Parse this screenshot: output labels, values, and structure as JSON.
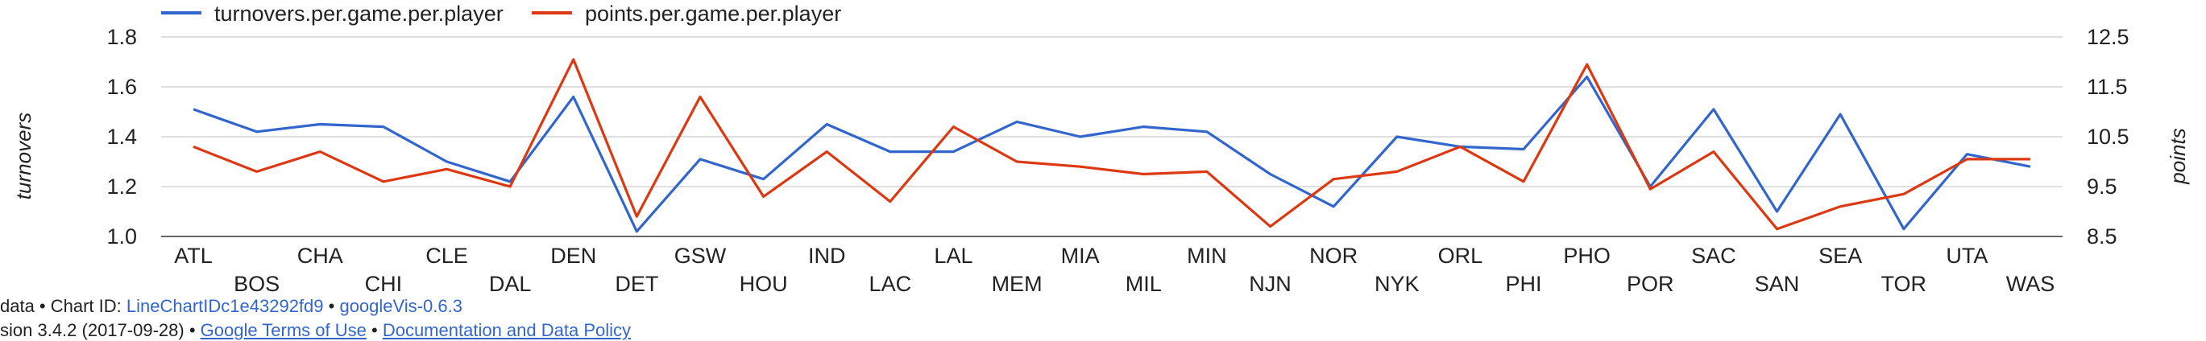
{
  "chart_data": {
    "type": "line",
    "categories": [
      "ATL",
      "BOS",
      "CHA",
      "CHI",
      "CLE",
      "DAL",
      "DEN",
      "DET",
      "GSW",
      "HOU",
      "IND",
      "LAC",
      "LAL",
      "MEM",
      "MIA",
      "MIL",
      "MIN",
      "NJN",
      "NOR",
      "NYK",
      "ORL",
      "PHI",
      "PHO",
      "POR",
      "SAC",
      "SAN",
      "SEA",
      "TOR",
      "UTA",
      "WAS"
    ],
    "series": [
      {
        "name": "turnovers.per.game.per.player",
        "axis": "left",
        "color": "#3366cc",
        "values": [
          1.51,
          1.42,
          1.45,
          1.44,
          1.3,
          1.22,
          1.56,
          1.02,
          1.31,
          1.23,
          1.45,
          1.34,
          1.34,
          1.46,
          1.4,
          1.44,
          1.42,
          1.25,
          1.12,
          1.4,
          1.36,
          1.35,
          1.64,
          1.2,
          1.51,
          1.1,
          1.49,
          1.03,
          1.33,
          1.28
        ]
      },
      {
        "name": "points.per.game.per.player",
        "axis": "right",
        "color": "#dc3912",
        "values": [
          10.3,
          9.8,
          10.2,
          9.6,
          9.85,
          9.5,
          12.05,
          8.9,
          11.3,
          9.3,
          10.2,
          9.2,
          10.7,
          10.0,
          9.9,
          9.75,
          9.8,
          8.7,
          9.65,
          9.8,
          10.3,
          9.6,
          11.95,
          9.45,
          10.2,
          8.65,
          9.1,
          9.35,
          10.05,
          10.05
        ]
      }
    ],
    "ylabel": "turnovers",
    "y2label": "points",
    "ylim": [
      1.0,
      1.8
    ],
    "y2lim": [
      8.5,
      12.5
    ],
    "yticks": [
      "1.8",
      "1.6",
      "1.4",
      "1.2",
      "1.0"
    ],
    "y2ticks": [
      "12.5",
      "11.5",
      "10.5",
      "9.5",
      "8.5"
    ],
    "grid": true,
    "legend_position": "top"
  },
  "footer": {
    "line1_prefix": "data • Chart ID: ",
    "line1_chart_id": "LineChartIDc1e43292fd9",
    "line1_sep": " • ",
    "line1_pkg": "googleVis-0.6.3",
    "line2_prefix": "sion 3.4.2 (2017-09-28) • ",
    "line2_terms": "Google Terms of Use",
    "line2_sep": " • ",
    "line2_docs": "Documentation and Data Policy"
  }
}
